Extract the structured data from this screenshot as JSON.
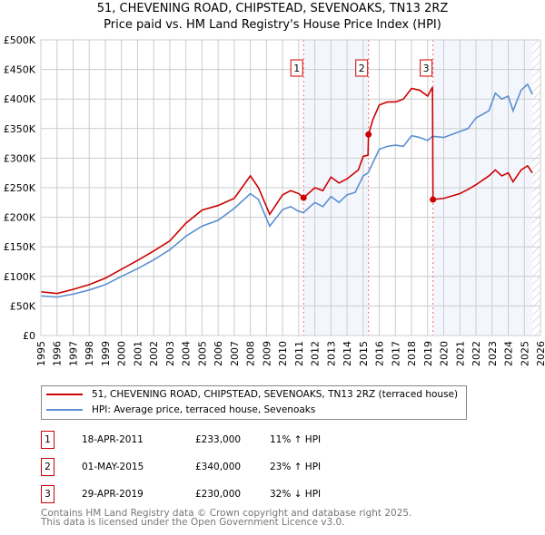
{
  "chart_data": {
    "type": "line",
    "title": "51, CHEVENING ROAD, CHIPSTEAD, SEVENOAKS, TN13 2RZ",
    "subtitle": "Price paid vs. HM Land Registry's House Price Index (HPI)",
    "xlim": [
      1995,
      2026
    ],
    "ylim": [
      0,
      500000
    ],
    "x_ticks": [
      "1995",
      "1996",
      "1997",
      "1998",
      "1999",
      "2000",
      "2001",
      "2002",
      "2003",
      "2004",
      "2005",
      "2006",
      "2007",
      "2008",
      "2009",
      "2010",
      "2011",
      "2012",
      "2013",
      "2014",
      "2015",
      "2016",
      "2017",
      "2018",
      "2019",
      "2020",
      "2021",
      "2022",
      "2023",
      "2024",
      "2025",
      "2026"
    ],
    "y_ticks": [
      {
        "v": 0,
        "l": "£0"
      },
      {
        "v": 50000,
        "l": "£50K"
      },
      {
        "v": 100000,
        "l": "£100K"
      },
      {
        "v": 150000,
        "l": "£150K"
      },
      {
        "v": 200000,
        "l": "£200K"
      },
      {
        "v": 250000,
        "l": "£250K"
      },
      {
        "v": 300000,
        "l": "£300K"
      },
      {
        "v": 350000,
        "l": "£350K"
      },
      {
        "v": 400000,
        "l": "£400K"
      },
      {
        "v": 450000,
        "l": "£450K"
      },
      {
        "v": 500000,
        "l": "£500K"
      }
    ],
    "grid": true,
    "shaded_ranges": [
      [
        2011.3,
        2015.33
      ],
      [
        2019.33,
        2025.5
      ]
    ],
    "hatched_from": 2025.5,
    "series": [
      {
        "name": "51, CHEVENING ROAD, CHIPSTEAD, SEVENOAKS, TN13 2RZ (terraced house)",
        "color": "#cc0000",
        "x": [
          1995,
          1996,
          1997,
          1998,
          1999,
          2000,
          2001,
          2002,
          2003,
          2004,
          2005,
          2006,
          2007,
          2008,
          2008.5,
          2009.2,
          2010,
          2010.5,
          2011,
          2011.3,
          2012,
          2012.5,
          2013,
          2013.5,
          2014,
          2014.7,
          2015,
          2015.3,
          2015.33,
          2015.6,
          2016,
          2016.5,
          2017,
          2017.5,
          2018,
          2018.5,
          2019,
          2019.3,
          2019.33,
          2020,
          2021,
          2021.5,
          2022,
          2022.8,
          2023.2,
          2023.6,
          2024,
          2024.3,
          2024.8,
          2025.2,
          2025.5
        ],
        "y": [
          74000,
          71000,
          78000,
          86000,
          97000,
          112000,
          127000,
          143000,
          160000,
          190000,
          212000,
          220000,
          232000,
          270000,
          250000,
          205000,
          238000,
          245000,
          240000,
          233000,
          250000,
          245000,
          268000,
          258000,
          265000,
          280000,
          303000,
          305000,
          340000,
          365000,
          390000,
          395000,
          395000,
          400000,
          418000,
          415000,
          405000,
          420000,
          230000,
          232000,
          240000,
          247000,
          255000,
          270000,
          280000,
          270000,
          275000,
          260000,
          280000,
          287000,
          275000
        ]
      },
      {
        "name": "HPI: Average price, terraced house, Sevenoaks",
        "color": "#5b8fd0",
        "x": [
          1995,
          1996,
          1997,
          1998,
          1999,
          2000,
          2001,
          2002,
          2003,
          2004,
          2005,
          2006,
          2007,
          2008,
          2008.5,
          2009.2,
          2010,
          2010.5,
          2011,
          2011.3,
          2012,
          2012.5,
          2013,
          2013.5,
          2014,
          2014.5,
          2015,
          2015.3,
          2016,
          2016.5,
          2017,
          2017.5,
          2018,
          2018.5,
          2019,
          2019.3,
          2020,
          2021,
          2021.5,
          2022,
          2022.8,
          2023.2,
          2023.6,
          2024,
          2024.3,
          2024.8,
          2025.2,
          2025.5
        ],
        "y": [
          67000,
          65000,
          70000,
          77000,
          86000,
          100000,
          113000,
          128000,
          145000,
          168000,
          185000,
          195000,
          215000,
          240000,
          230000,
          185000,
          213000,
          218000,
          210000,
          208000,
          225000,
          218000,
          235000,
          225000,
          238000,
          242000,
          270000,
          275000,
          315000,
          320000,
          322000,
          320000,
          338000,
          335000,
          330000,
          337000,
          335000,
          345000,
          350000,
          368000,
          380000,
          410000,
          400000,
          405000,
          380000,
          415000,
          425000,
          408000
        ]
      }
    ],
    "sales": [
      {
        "n": "1",
        "x": 2011.3,
        "y": 233000,
        "date": "18-APR-2011",
        "price": "£233,000",
        "hpi": "11% ↑ HPI"
      },
      {
        "n": "2",
        "x": 2015.33,
        "y": 340000,
        "date": "01-MAY-2015",
        "price": "£340,000",
        "hpi": "23% ↑ HPI"
      },
      {
        "n": "3",
        "x": 2019.33,
        "y": 230000,
        "date": "29-APR-2019",
        "price": "£230,000",
        "hpi": "32% ↓ HPI"
      }
    ]
  },
  "footer": {
    "line1": "Contains HM Land Registry data © Crown copyright and database right 2025.",
    "line2": "This data is licensed under the Open Government Licence v3.0."
  }
}
